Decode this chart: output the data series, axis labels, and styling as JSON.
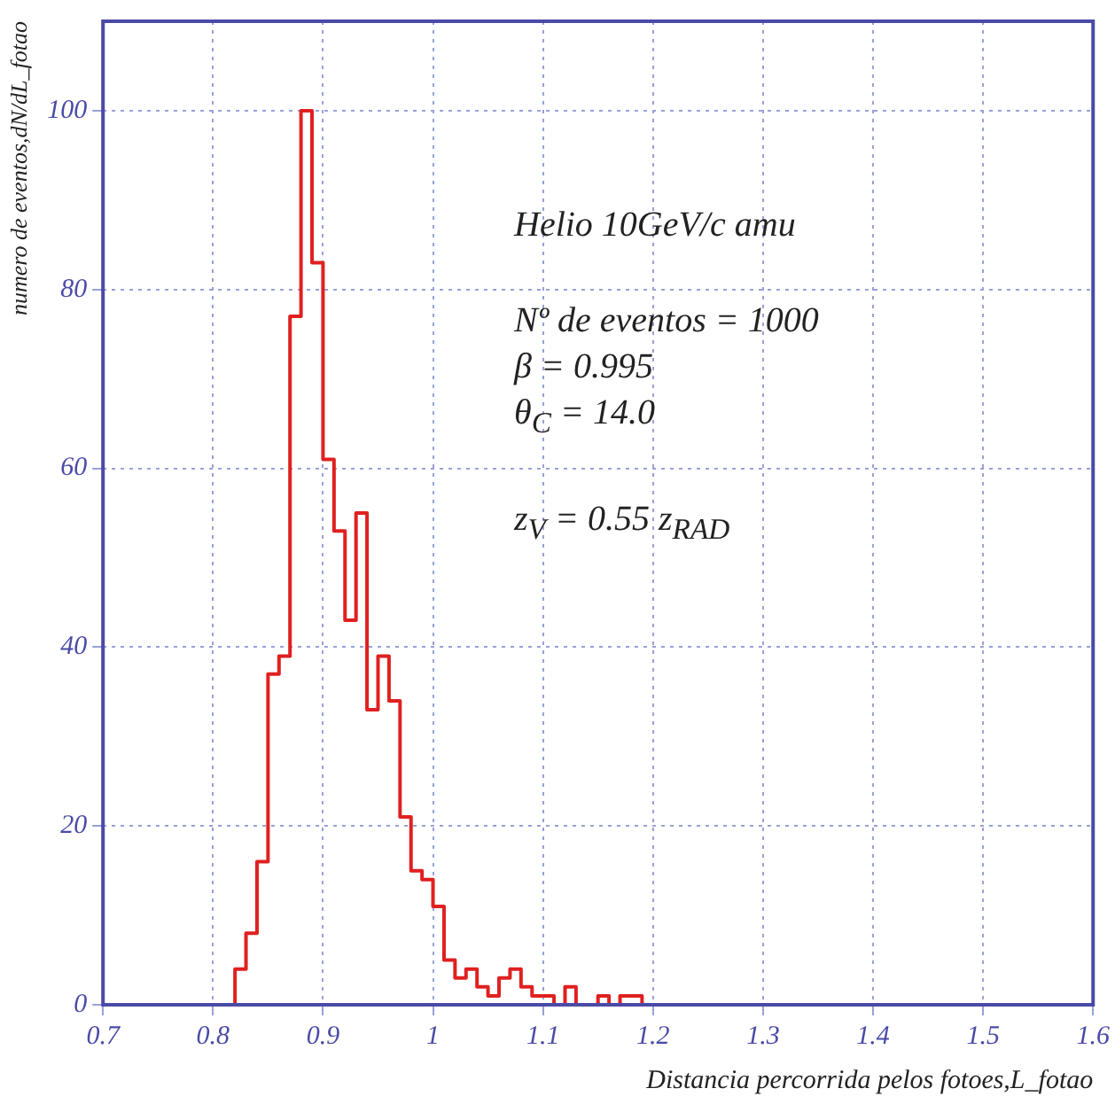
{
  "chart_data": {
    "type": "histogram",
    "xlabel": "Distancia percorrida pelos fotoes,L_fotao",
    "ylabel": "numero de eventos,dN/dL_fotao",
    "annotations": [
      "Helio 10GeV/c amu",
      "Nº de eventos = 1000",
      "β  = 0.995",
      "θ$_{C}$ = 14.0",
      "z$_{V}$ = 0.55 z$_{RAD}$"
    ],
    "bins": [
      0.7,
      0.71,
      0.72,
      0.73,
      0.74,
      0.75,
      0.76,
      0.77,
      0.78,
      0.79,
      0.8,
      0.81,
      0.82,
      0.83,
      0.84,
      0.85,
      0.86,
      0.87,
      0.88,
      0.89,
      0.9,
      0.91,
      0.92,
      0.93,
      0.94,
      0.95,
      0.96,
      0.97,
      0.98,
      0.99,
      1.0,
      1.01,
      1.02,
      1.03,
      1.04,
      1.05,
      1.06,
      1.07,
      1.08,
      1.09,
      1.1,
      1.11,
      1.12,
      1.13,
      1.14,
      1.15,
      1.16,
      1.17,
      1.18,
      1.19,
      1.2,
      1.21,
      1.22,
      1.23,
      1.24,
      1.25,
      1.26,
      1.27,
      1.28,
      1.29,
      1.3,
      1.31,
      1.32,
      1.33,
      1.34,
      1.35,
      1.36,
      1.37,
      1.38,
      1.39,
      1.4,
      1.41,
      1.42,
      1.43,
      1.44,
      1.45,
      1.46,
      1.47,
      1.48,
      1.49,
      1.5,
      1.51,
      1.52,
      1.53,
      1.54,
      1.55,
      1.56,
      1.57,
      1.58,
      1.59,
      1.6
    ],
    "values": [
      0,
      0,
      0,
      0,
      0,
      0,
      0,
      0,
      0,
      0,
      0,
      0,
      4,
      8,
      16,
      37,
      39,
      77,
      100,
      83,
      61,
      53,
      43,
      55,
      33,
      39,
      34,
      21,
      15,
      14,
      11,
      5,
      3,
      4,
      2,
      1,
      3,
      4,
      2,
      1,
      1,
      0,
      2,
      0,
      0,
      1,
      0,
      1,
      1,
      0,
      0,
      0,
      0,
      0,
      0,
      0,
      0,
      0,
      0,
      0,
      0,
      0,
      0,
      0,
      0,
      0,
      0,
      0,
      0,
      0,
      0,
      0,
      0,
      0,
      0,
      0,
      0,
      0,
      0,
      0,
      0,
      0,
      0,
      0,
      0,
      0,
      0,
      0,
      0,
      0
    ],
    "color": "#e02020",
    "xlim": [
      0.7,
      1.6
    ],
    "xticks": [
      0.7,
      0.8,
      0.9,
      1,
      1.1,
      1.2,
      1.3,
      1.4,
      1.5,
      1.6
    ],
    "ylim": [
      0,
      110
    ],
    "yticks": [
      0,
      20,
      40,
      60,
      80,
      100
    ],
    "grid": true,
    "legend": false
  }
}
